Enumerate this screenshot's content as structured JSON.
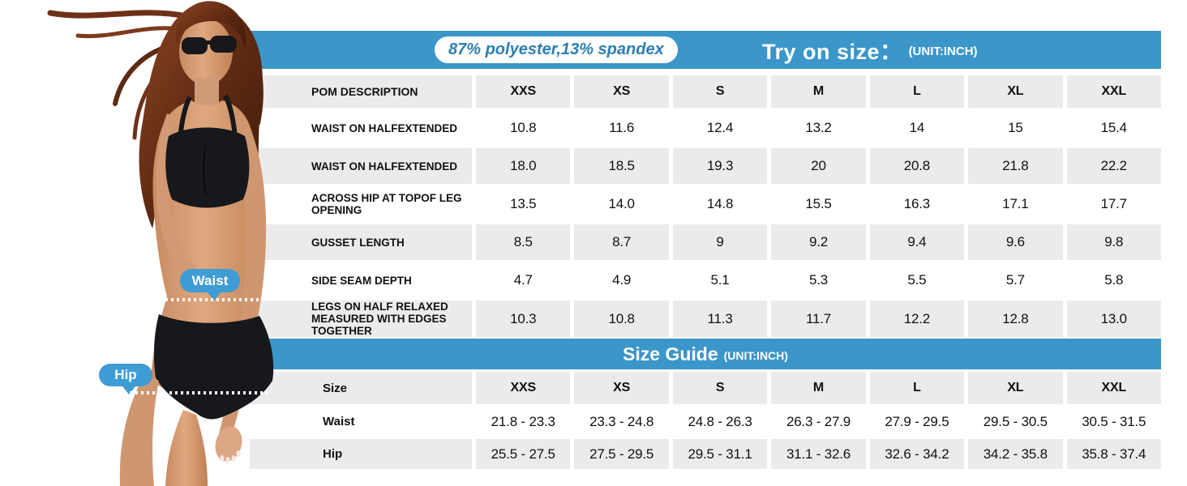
{
  "header": {
    "fabric_badge": "87% polyester,13% spandex",
    "title": "Try on size：",
    "unit": "(UNIT:INCH)"
  },
  "try_on_table": {
    "label_header": "POM DESCRIPTION",
    "columns": [
      "XXS",
      "XS",
      "S",
      "M",
      "L",
      "XL",
      "XXL"
    ],
    "rows": [
      {
        "label": "WAIST ON HALFEXTENDED",
        "values": [
          "10.8",
          "11.6",
          "12.4",
          "13.2",
          "14",
          "15",
          "15.4"
        ]
      },
      {
        "label": "WAIST ON HALFEXTENDED",
        "values": [
          "18.0",
          "18.5",
          "19.3",
          "20",
          "20.8",
          "21.8",
          "22.2"
        ]
      },
      {
        "label": "ACROSS HIP AT TOPOF LEG OPENING",
        "values": [
          "13.5",
          "14.0",
          "14.8",
          "15.5",
          "16.3",
          "17.1",
          "17.7"
        ]
      },
      {
        "label": "GUSSET LENGTH",
        "values": [
          "8.5",
          "8.7",
          "9",
          "9.2",
          "9.4",
          "9.6",
          "9.8"
        ]
      },
      {
        "label": "SIDE SEAM DEPTH",
        "values": [
          "4.7",
          "4.9",
          "5.1",
          "5.3",
          "5.5",
          "5.7",
          "5.8"
        ]
      },
      {
        "label": "LEGS ON HALF RELAXED MEASURED WITH EDGES TOGETHER",
        "values": [
          "10.3",
          "10.8",
          "11.3",
          "11.7",
          "12.2",
          "12.8",
          "13.0"
        ]
      }
    ]
  },
  "size_guide": {
    "title": "Size Guide",
    "unit": "(UNIT:INCH)",
    "label_header": "Size",
    "columns": [
      "XXS",
      "XS",
      "S",
      "M",
      "L",
      "XL",
      "XXL"
    ],
    "rows": [
      {
        "label": "Waist",
        "values": [
          "21.8 - 23.3",
          "23.3 - 24.8",
          "24.8 - 26.3",
          "26.3 - 27.9",
          "27.9 - 29.5",
          "29.5 - 30.5",
          "30.5 - 31.5"
        ]
      },
      {
        "label": "Hip",
        "values": [
          "25.5 - 27.5",
          "27.5 - 29.5",
          "29.5 - 31.1",
          "31.1 - 32.6",
          "32.6 - 34.2",
          "34.2 - 35.8",
          "35.8 - 37.4"
        ]
      }
    ]
  },
  "figure": {
    "waist_label": "Waist",
    "hip_label": "Hip"
  },
  "colors": {
    "accent_blue": "#3b96c9",
    "row_gray": "#ebebeb",
    "badge_text_blue": "#2c7fb2",
    "tag_blue": "#3f9cd4",
    "text_dark": "#111111"
  }
}
